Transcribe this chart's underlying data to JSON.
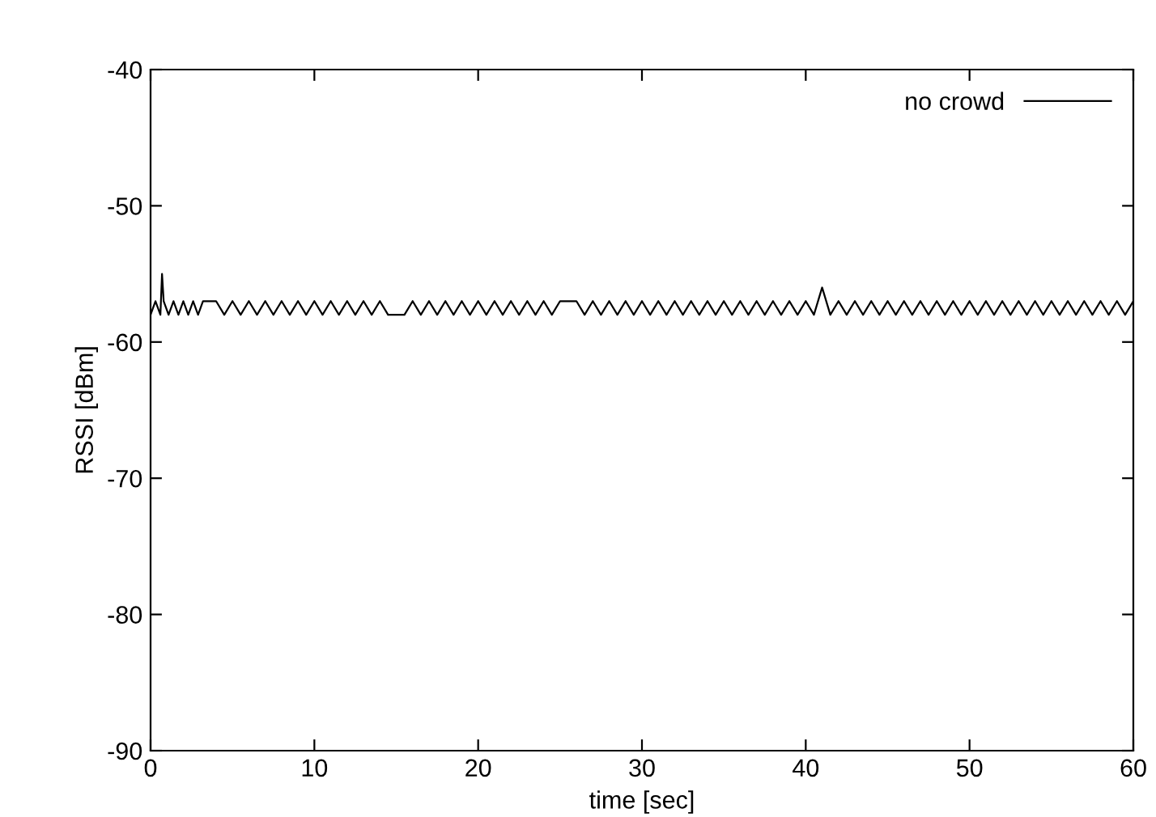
{
  "chart_data": {
    "type": "line",
    "xlabel": "time [sec]",
    "ylabel": "RSSI [dBm]",
    "xlim": [
      0,
      60
    ],
    "ylim": [
      -90,
      -40
    ],
    "xticks": [
      0,
      10,
      20,
      30,
      40,
      50,
      60
    ],
    "yticks": [
      -90,
      -80,
      -70,
      -60,
      -50,
      -40
    ],
    "grid": false,
    "legend": "top right",
    "marker": "none",
    "line_style": "solid",
    "series": [
      {
        "name": "no crowd",
        "color": "#000000",
        "x": [
          0,
          0.3,
          0.6,
          0.7,
          0.8,
          1.1,
          1.4,
          1.7,
          2.0,
          2.3,
          2.6,
          2.9,
          3.2,
          3.5,
          4.0,
          4.5,
          5.0,
          5.5,
          6.0,
          6.5,
          7.0,
          7.5,
          8.0,
          8.5,
          9.0,
          9.5,
          10.0,
          10.5,
          11.0,
          11.5,
          12.0,
          12.5,
          13.0,
          13.5,
          14.0,
          14.5,
          15.0,
          15.5,
          16.0,
          16.5,
          17.0,
          17.5,
          18.0,
          18.5,
          19.0,
          19.5,
          20.0,
          20.5,
          21.0,
          21.5,
          22.0,
          22.5,
          23.0,
          23.5,
          24.0,
          24.5,
          25.0,
          25.5,
          26.0,
          26.5,
          27.0,
          27.5,
          28.0,
          28.5,
          29.0,
          29.5,
          30.0,
          30.5,
          31.0,
          31.5,
          32.0,
          32.5,
          33.0,
          33.5,
          34.0,
          34.5,
          35.0,
          35.5,
          36.0,
          36.5,
          37.0,
          37.5,
          38.0,
          38.5,
          39.0,
          39.5,
          40.0,
          40.5,
          41.0,
          41.5,
          42.0,
          42.5,
          43.0,
          43.5,
          44.0,
          44.5,
          45.0,
          45.5,
          46.0,
          46.5,
          47.0,
          47.5,
          48.0,
          48.5,
          49.0,
          49.5,
          50.0,
          50.5,
          51.0,
          51.5,
          52.0,
          52.5,
          53.0,
          53.5,
          54.0,
          54.5,
          55.0,
          55.5,
          56.0,
          56.5,
          57.0,
          57.5,
          58.0,
          58.5,
          59.0,
          59.5,
          60.0
        ],
        "values": [
          -58,
          -57,
          -58,
          -55,
          -57,
          -58,
          -57,
          -58,
          -57,
          -58,
          -57,
          -58,
          -57,
          -57,
          -57,
          -58,
          -57,
          -58,
          -57,
          -58,
          -57,
          -58,
          -57,
          -58,
          -57,
          -58,
          -57,
          -58,
          -57,
          -58,
          -57,
          -58,
          -57,
          -58,
          -57,
          -58,
          -58,
          -58,
          -57,
          -58,
          -57,
          -58,
          -57,
          -58,
          -57,
          -58,
          -57,
          -58,
          -57,
          -58,
          -57,
          -58,
          -57,
          -58,
          -57,
          -58,
          -57,
          -57,
          -57,
          -58,
          -57,
          -58,
          -57,
          -58,
          -57,
          -58,
          -57,
          -58,
          -57,
          -58,
          -57,
          -58,
          -57,
          -58,
          -57,
          -58,
          -57,
          -58,
          -57,
          -58,
          -57,
          -58,
          -57,
          -58,
          -57,
          -58,
          -57,
          -58,
          -56,
          -58,
          -57,
          -58,
          -57,
          -58,
          -57,
          -58,
          -57,
          -58,
          -57,
          -58,
          -57,
          -58,
          -57,
          -58,
          -57,
          -58,
          -57,
          -58,
          -57,
          -58,
          -57,
          -58,
          -57,
          -58,
          -57,
          -58,
          -57,
          -58,
          -57,
          -58,
          -57,
          -58,
          -57,
          -58,
          -57,
          -58,
          -57
        ]
      }
    ]
  }
}
